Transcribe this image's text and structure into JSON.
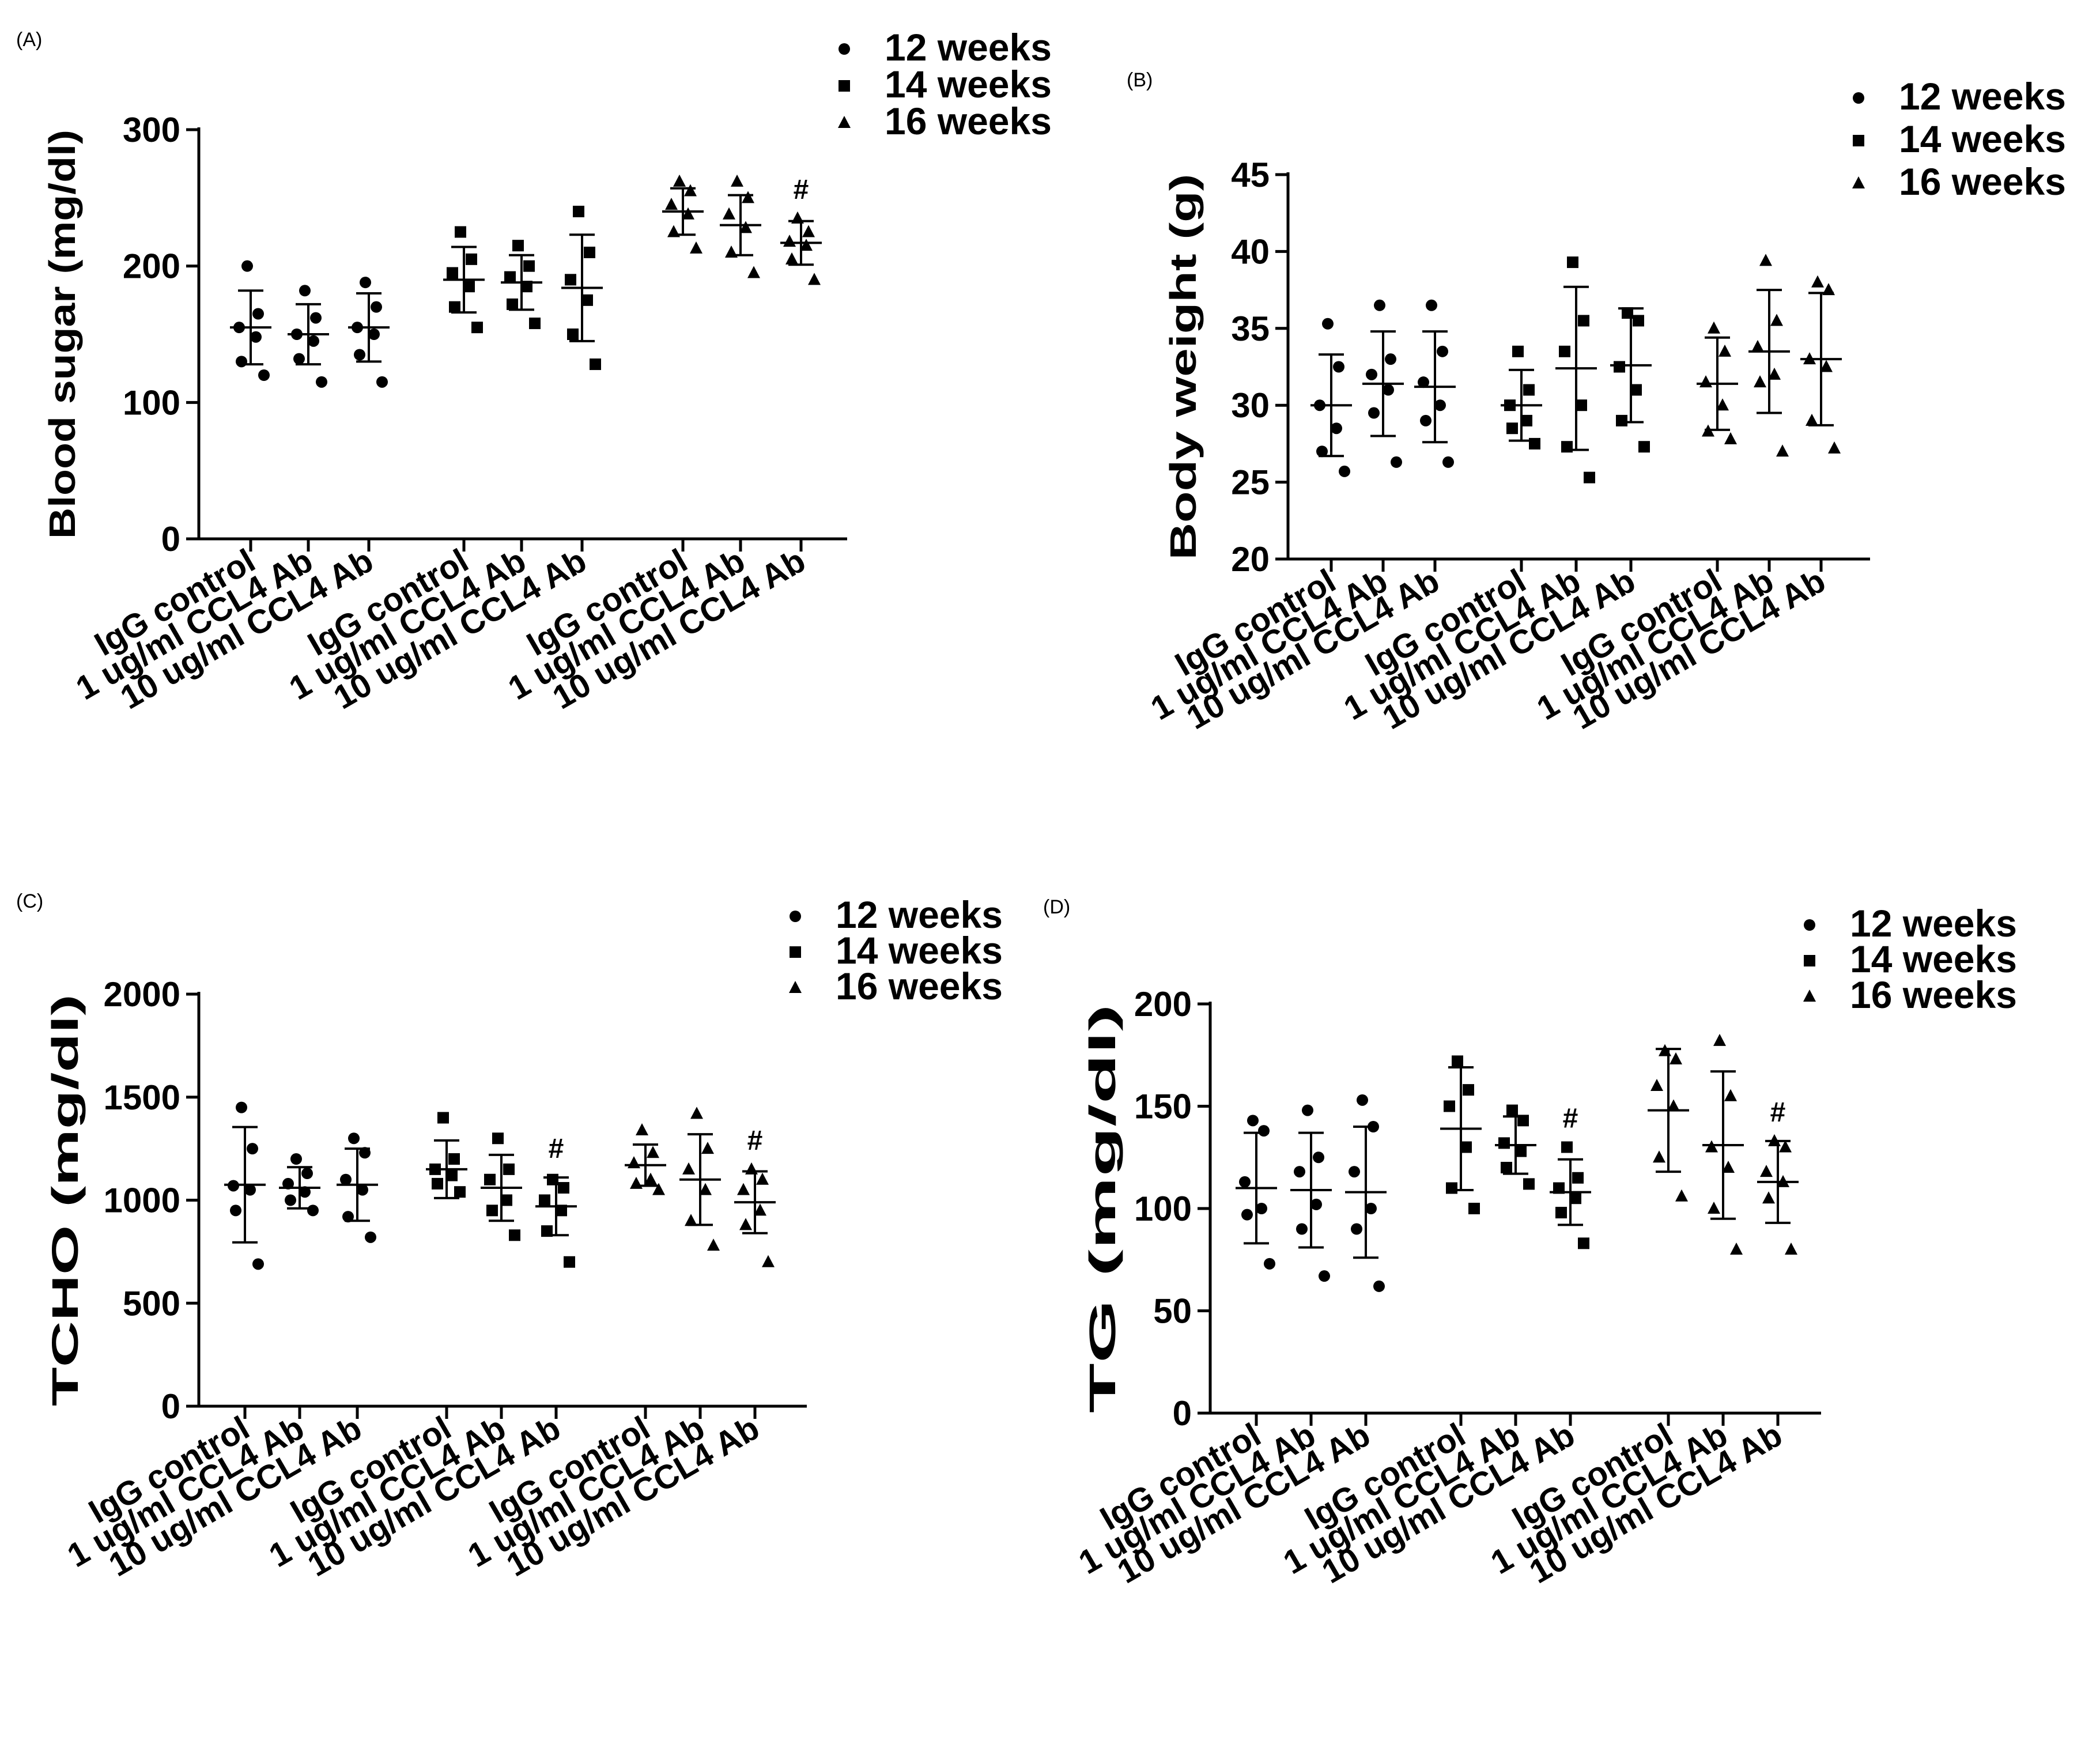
{
  "figure": {
    "categories": [
      "IgG control",
      "1 ug/ml CCL4 Ab",
      "10 ug/ml CCL4 Ab"
    ],
    "legend": [
      {
        "label": "12 weeks",
        "marker": "circle"
      },
      {
        "label": "14 weeks",
        "marker": "square"
      },
      {
        "label": "16 weeks",
        "marker": "triangle"
      }
    ]
  },
  "chart_data": [
    {
      "panel": "(A)",
      "type": "scatter",
      "title": "",
      "ylabel": "Blood sugar (mg/dl)",
      "ylim": [
        0,
        300
      ],
      "yticks": [
        0,
        100,
        200,
        300
      ],
      "grid": false,
      "legend_position": "top-right",
      "groups": [
        {
          "series": "12 weeks",
          "marker": "circle",
          "categories": [
            {
              "mean": 155,
              "sd": 27,
              "points": [
                200,
                165,
                155,
                148,
                130,
                120
              ],
              "sig": ""
            },
            {
              "mean": 150,
              "sd": 22,
              "points": [
                182,
                162,
                150,
                145,
                132,
                115
              ],
              "sig": ""
            },
            {
              "mean": 155,
              "sd": 25,
              "points": [
                188,
                170,
                155,
                150,
                135,
                115
              ],
              "sig": ""
            }
          ]
        },
        {
          "series": "14 weeks",
          "marker": "square",
          "categories": [
            {
              "mean": 190,
              "sd": 24,
              "points": [
                225,
                205,
                195,
                185,
                170,
                155
              ],
              "sig": ""
            },
            {
              "mean": 188,
              "sd": 20,
              "points": [
                215,
                200,
                192,
                185,
                172,
                158
              ],
              "sig": ""
            },
            {
              "mean": 184,
              "sd": 39,
              "points": [
                240,
                210,
                190,
                175,
                150,
                128
              ],
              "sig": ""
            }
          ]
        },
        {
          "series": "16 weeks",
          "marker": "triangle",
          "categories": [
            {
              "mean": 240,
              "sd": 17,
              "points": [
                262,
                255,
                245,
                238,
                225,
                213
              ],
              "sig": ""
            },
            {
              "mean": 230,
              "sd": 22,
              "points": [
                262,
                250,
                238,
                228,
                210,
                195
              ],
              "sig": ""
            },
            {
              "mean": 217,
              "sd": 16,
              "points": [
                235,
                225,
                218,
                215,
                205,
                190
              ],
              "sig": "#"
            }
          ]
        }
      ]
    },
    {
      "panel": "(B)",
      "type": "scatter",
      "title": "",
      "ylabel": "Body weight (g)",
      "ylim": [
        20,
        45
      ],
      "yticks": [
        20,
        25,
        30,
        35,
        40,
        45
      ],
      "grid": false,
      "legend_position": "top-right",
      "groups": [
        {
          "series": "12 weeks",
          "marker": "circle",
          "categories": [
            {
              "mean": 30.0,
              "sd": 3.3,
              "points": [
                35.3,
                32.5,
                30.0,
                28.5,
                27.0,
                25.7
              ],
              "sig": ""
            },
            {
              "mean": 31.4,
              "sd": 3.4,
              "points": [
                36.5,
                33.0,
                32.0,
                31.0,
                29.5,
                26.3
              ],
              "sig": ""
            },
            {
              "mean": 31.2,
              "sd": 3.6,
              "points": [
                36.5,
                33.5,
                31.5,
                30.0,
                29.0,
                26.3
              ],
              "sig": ""
            }
          ]
        },
        {
          "series": "14 weeks",
          "marker": "square",
          "categories": [
            {
              "mean": 30.0,
              "sd": 2.3,
              "points": [
                33.5,
                31.0,
                30.0,
                29.0,
                28.5,
                27.5
              ],
              "sig": ""
            },
            {
              "mean": 32.4,
              "sd": 5.3,
              "points": [
                39.3,
                35.5,
                33.5,
                30.0,
                27.3,
                25.3
              ],
              "sig": ""
            },
            {
              "mean": 32.6,
              "sd": 3.7,
              "points": [
                36.0,
                35.5,
                32.5,
                31.0,
                29.0,
                27.3
              ],
              "sig": ""
            }
          ]
        },
        {
          "series": "16 weeks",
          "marker": "triangle",
          "categories": [
            {
              "mean": 31.4,
              "sd": 3.0,
              "points": [
                35.0,
                33.5,
                31.5,
                30.0,
                28.3,
                27.8
              ],
              "sig": ""
            },
            {
              "mean": 33.5,
              "sd": 4.0,
              "points": [
                39.4,
                35.5,
                33.8,
                32.0,
                31.5,
                27.0
              ],
              "sig": ""
            },
            {
              "mean": 33.0,
              "sd": 4.3,
              "points": [
                38.0,
                37.5,
                33.0,
                32.5,
                29.0,
                27.2
              ],
              "sig": ""
            }
          ]
        }
      ]
    },
    {
      "panel": "(C)",
      "type": "scatter",
      "title": "",
      "ylabel": "TCHO (mg/dl)",
      "ylim": [
        0,
        2000
      ],
      "yticks": [
        0,
        500,
        1000,
        1500,
        2000
      ],
      "grid": false,
      "legend_position": "top-right",
      "groups": [
        {
          "series": "12 weeks",
          "marker": "circle",
          "categories": [
            {
              "mean": 1075,
              "sd": 280,
              "points": [
                1450,
                1250,
                1070,
                1050,
                950,
                690
              ],
              "sig": ""
            },
            {
              "mean": 1060,
              "sd": 100,
              "points": [
                1200,
                1130,
                1080,
                1040,
                1000,
                950
              ],
              "sig": ""
            },
            {
              "mean": 1075,
              "sd": 175,
              "points": [
                1300,
                1230,
                1100,
                1050,
                920,
                820
              ],
              "sig": ""
            }
          ]
        },
        {
          "series": "14 weeks",
          "marker": "square",
          "categories": [
            {
              "mean": 1150,
              "sd": 140,
              "points": [
                1400,
                1200,
                1150,
                1120,
                1080,
                1040
              ],
              "sig": ""
            },
            {
              "mean": 1060,
              "sd": 160,
              "points": [
                1300,
                1150,
                1100,
                1000,
                950,
                830
              ],
              "sig": ""
            },
            {
              "mean": 970,
              "sd": 140,
              "points": [
                1100,
                1060,
                1000,
                950,
                850,
                700
              ],
              "sig": "#"
            }
          ]
        },
        {
          "series": "16 weeks",
          "marker": "triangle",
          "categories": [
            {
              "mean": 1170,
              "sd": 100,
              "points": [
                1340,
                1230,
                1180,
                1100,
                1080,
                1050
              ],
              "sig": ""
            },
            {
              "mean": 1100,
              "sd": 220,
              "points": [
                1420,
                1250,
                1150,
                1050,
                900,
                780
              ],
              "sig": ""
            },
            {
              "mean": 990,
              "sd": 150,
              "points": [
                1150,
                1100,
                1050,
                950,
                880,
                700
              ],
              "sig": "#"
            }
          ]
        }
      ]
    },
    {
      "panel": "(D)",
      "type": "scatter",
      "title": "",
      "ylabel": "TG (mg/dl)",
      "ylim": [
        0,
        200
      ],
      "yticks": [
        0,
        50,
        100,
        150,
        200
      ],
      "grid": false,
      "legend_position": "top-right",
      "groups": [
        {
          "series": "12 weeks",
          "marker": "circle",
          "categories": [
            {
              "mean": 110,
              "sd": 27,
              "points": [
                143,
                138,
                113,
                100,
                97,
                73
              ],
              "sig": ""
            },
            {
              "mean": 109,
              "sd": 28,
              "points": [
                148,
                125,
                118,
                102,
                90,
                67
              ],
              "sig": ""
            },
            {
              "mean": 108,
              "sd": 32,
              "points": [
                153,
                140,
                118,
                100,
                90,
                62
              ],
              "sig": ""
            }
          ]
        },
        {
          "series": "14 weeks",
          "marker": "square",
          "categories": [
            {
              "mean": 139,
              "sd": 30,
              "points": [
                172,
                158,
                150,
                130,
                110,
                100
              ],
              "sig": ""
            },
            {
              "mean": 131,
              "sd": 14,
              "points": [
                148,
                143,
                132,
                128,
                120,
                112
              ],
              "sig": ""
            },
            {
              "mean": 108,
              "sd": 16,
              "points": [
                130,
                115,
                110,
                105,
                98,
                83
              ],
              "sig": "#"
            }
          ]
        },
        {
          "series": "16 weeks",
          "marker": "triangle",
          "categories": [
            {
              "mean": 148,
              "sd": 30,
              "points": [
                177,
                173,
                160,
                150,
                125,
                106
              ],
              "sig": ""
            },
            {
              "mean": 131,
              "sd": 36,
              "points": [
                182,
                155,
                130,
                120,
                100,
                80
              ],
              "sig": ""
            },
            {
              "mean": 113,
              "sd": 20,
              "points": [
                133,
                130,
                118,
                113,
                105,
                80
              ],
              "sig": "#"
            }
          ]
        }
      ]
    }
  ]
}
